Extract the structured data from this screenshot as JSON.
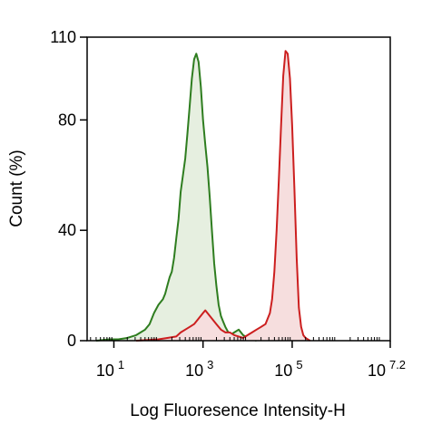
{
  "chart_data": {
    "type": "area",
    "title": "",
    "xlabel": "Log Fluoresence Intensity-H",
    "ylabel": "Count  (%)",
    "xscale": "log",
    "xlim_log10": [
      0.4,
      7.2
    ],
    "ylim": [
      0,
      110
    ],
    "grid": false,
    "legend": "none",
    "x_ticks": [
      {
        "base": "10",
        "exp": "1",
        "log10": 1
      },
      {
        "base": "10",
        "exp": "3",
        "log10": 3
      },
      {
        "base": "10",
        "exp": "5",
        "log10": 5
      },
      {
        "base": "10",
        "exp": "7.2",
        "log10": 7.2
      }
    ],
    "y_ticks": [
      0,
      40,
      80,
      110
    ],
    "series": [
      {
        "color": "#2e7d1f",
        "fill": "#e6efe0",
        "x_log10": [
          0.6,
          0.9,
          1.1,
          1.3,
          1.4,
          1.5,
          1.6,
          1.7,
          1.8,
          1.9,
          2.0,
          2.05,
          2.1,
          2.15,
          2.2,
          2.25,
          2.3,
          2.35,
          2.4,
          2.45,
          2.5,
          2.55,
          2.6,
          2.65,
          2.7,
          2.75,
          2.8,
          2.85,
          2.9,
          2.95,
          3.0,
          3.05,
          3.1,
          3.15,
          3.2,
          3.25,
          3.3,
          3.35,
          3.4,
          3.45,
          3.5,
          3.6,
          3.7,
          3.8,
          3.9,
          4.0,
          4.1,
          4.2
        ],
        "y": [
          0,
          0.5,
          0.5,
          1,
          1.5,
          2,
          3,
          4,
          6,
          10,
          13,
          14,
          15,
          17,
          20,
          23,
          25,
          30,
          37,
          44,
          54,
          60,
          66,
          75,
          85,
          95,
          102,
          104,
          101,
          92,
          80,
          71,
          63,
          52,
          40,
          28,
          20,
          13,
          9,
          7,
          5,
          2,
          3,
          4,
          2,
          1,
          0.5,
          0
        ]
      },
      {
        "color": "#cc1f1f",
        "fill": "#f6dede",
        "x_log10": [
          1.5,
          2.0,
          2.2,
          2.4,
          2.5,
          2.6,
          2.7,
          2.8,
          2.9,
          3.0,
          3.05,
          3.1,
          3.15,
          3.2,
          3.3,
          3.4,
          3.5,
          3.6,
          3.7,
          3.8,
          3.9,
          4.0,
          4.1,
          4.2,
          4.3,
          4.4,
          4.5,
          4.55,
          4.6,
          4.65,
          4.7,
          4.75,
          4.8,
          4.85,
          4.9,
          4.95,
          5.0,
          5.05,
          5.1,
          5.15,
          5.2,
          5.25,
          5.3,
          5.4
        ],
        "y": [
          0,
          0.5,
          1,
          1.5,
          3,
          4,
          5,
          6,
          8,
          10,
          11,
          10,
          9,
          8,
          6,
          4,
          3,
          3,
          2,
          1.5,
          1,
          2,
          3,
          4,
          5,
          6,
          10,
          15,
          25,
          40,
          58,
          78,
          96,
          105,
          104,
          95,
          78,
          55,
          30,
          12,
          5,
          2,
          1,
          0
        ]
      }
    ]
  }
}
